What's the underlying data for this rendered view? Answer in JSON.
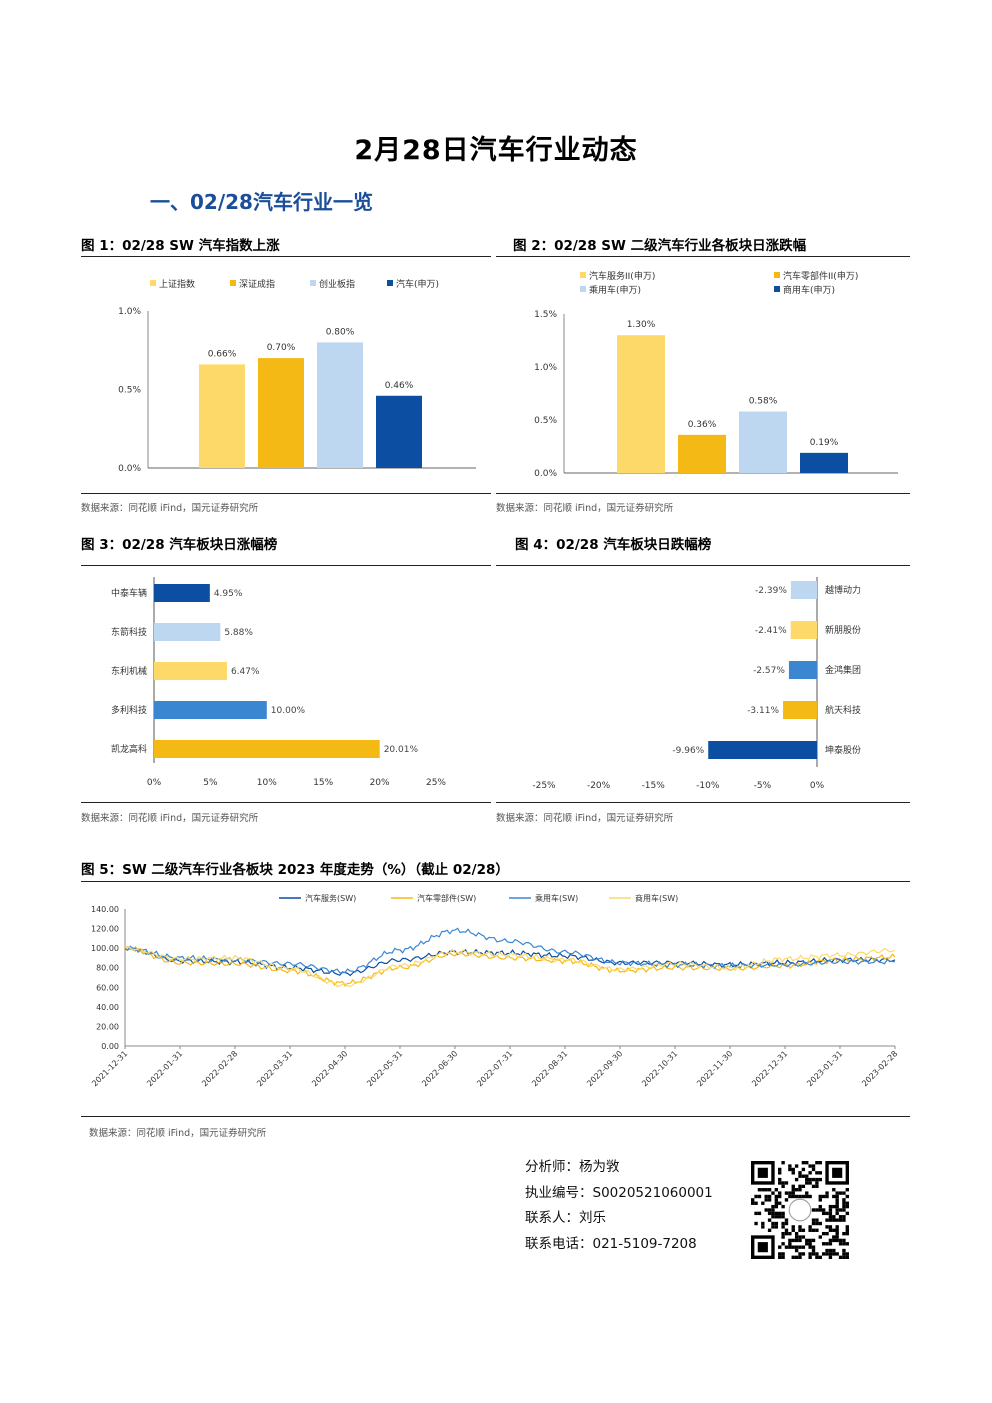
{
  "document": {
    "title": "2月28日汽车行业动态",
    "section": "一、02/28汽车行业一览"
  },
  "figures": {
    "fig1": {
      "title": "图 1：02/28 SW 汽车指数上涨",
      "source": "数据来源：同花顺 iFind，国元证券研究所"
    },
    "fig2": {
      "title": "图 2：02/28 SW 二级汽车行业各板块日涨跌幅",
      "source": "数据来源：同花顺 iFind，国元证券研究所"
    },
    "fig3": {
      "title": "图 3：02/28 汽车板块日涨幅榜",
      "source": "数据来源：同花顺 iFind，国元证券研究所"
    },
    "fig4": {
      "title": "图 4：02/28 汽车板块日跌幅榜",
      "source": "数据来源：同花顺 iFind，国元证券研究所"
    },
    "fig5": {
      "title": "图 5：SW 二级汽车行业各板块 2023 年度走势（%）（截止 02/28）",
      "source": "数据来源：同花顺 iFind，国元证券研究所"
    }
  },
  "colors": {
    "light_yellow": "#fdd96a",
    "gold": "#f5b915",
    "light_blue": "#bcd7ef",
    "mid_blue": "#3b86d0",
    "navy": "#0b4ea2"
  },
  "chart_data": [
    {
      "id": "fig1",
      "type": "bar",
      "categories": [
        "上证指数",
        "深证成指",
        "创业板指",
        "汽车(申万)"
      ],
      "values": [
        0.66,
        0.7,
        0.8,
        0.46
      ],
      "labels": [
        "0.66%",
        "0.70%",
        "0.80%",
        "0.46%"
      ],
      "colors": [
        "#fdd96a",
        "#f5b915",
        "#bcd7ef",
        "#0b4ea2"
      ],
      "ylim": [
        0,
        1.0
      ],
      "yticks": [
        {
          "v": 0,
          "label": "0.0%"
        },
        {
          "v": 0.5,
          "label": "0.5%"
        },
        {
          "v": 1.0,
          "label": "1.0%"
        }
      ],
      "legend": "top"
    },
    {
      "id": "fig2",
      "type": "bar",
      "categories": [
        "汽车服务II(申万)",
        "汽车零部件II(申万)",
        "乘用车(申万)",
        "商用车(申万)"
      ],
      "values": [
        1.3,
        0.36,
        0.58,
        0.19
      ],
      "labels": [
        "1.30%",
        "0.36%",
        "0.58%",
        "0.19%"
      ],
      "colors": [
        "#fdd96a",
        "#f5b915",
        "#bcd7ef",
        "#0b4ea2"
      ],
      "ylim": [
        0,
        1.5
      ],
      "yticks": [
        {
          "v": 0,
          "label": "0.0%"
        },
        {
          "v": 0.5,
          "label": "0.5%"
        },
        {
          "v": 1.0,
          "label": "1.0%"
        },
        {
          "v": 1.5,
          "label": "1.5%"
        }
      ],
      "legend": "top"
    },
    {
      "id": "fig3",
      "type": "bar",
      "orientation": "horizontal",
      "categories": [
        "中泰车辆",
        "东箭科技",
        "东利机械",
        "多利科技",
        "凯龙高科"
      ],
      "values": [
        4.95,
        5.88,
        6.47,
        10.0,
        20.01
      ],
      "labels": [
        "4.95%",
        "5.88%",
        "6.47%",
        "10.00%",
        "20.01%"
      ],
      "colors": [
        "#0b4ea2",
        "#bcd7ef",
        "#fdd96a",
        "#3b86d0",
        "#f5b915"
      ],
      "xlim": [
        0,
        25
      ],
      "xticks": [
        {
          "v": 0,
          "label": "0%"
        },
        {
          "v": 5,
          "label": "5%"
        },
        {
          "v": 10,
          "label": "10%"
        },
        {
          "v": 15,
          "label": "15%"
        },
        {
          "v": 20,
          "label": "20%"
        },
        {
          "v": 25,
          "label": "25%"
        }
      ]
    },
    {
      "id": "fig4",
      "type": "bar",
      "orientation": "horizontal",
      "categories": [
        "越博动力",
        "新朋股份",
        "金鸿集团",
        "航天科技",
        "坤泰股份"
      ],
      "values": [
        -2.39,
        -2.41,
        -2.57,
        -3.11,
        -9.96
      ],
      "labels": [
        "-2.39%",
        "-2.41%",
        "-2.57%",
        "-3.11%",
        "-9.96%"
      ],
      "colors": [
        "#bcd7ef",
        "#fdd96a",
        "#3b86d0",
        "#f5b915",
        "#0b4ea2"
      ],
      "xlim": [
        -25,
        0
      ],
      "xticks": [
        {
          "v": -25,
          "label": "-25%"
        },
        {
          "v": -20,
          "label": "-20%"
        },
        {
          "v": -15,
          "label": "-15%"
        },
        {
          "v": -10,
          "label": "-10%"
        },
        {
          "v": -5,
          "label": "-5%"
        },
        {
          "v": 0,
          "label": "0%"
        }
      ]
    },
    {
      "id": "fig5",
      "type": "line",
      "x": [
        "2021-12-31",
        "2022-01-31",
        "2022-02-28",
        "2022-03-31",
        "2022-04-30",
        "2022-05-31",
        "2022-06-30",
        "2022-07-31",
        "2022-08-31",
        "2022-09-30",
        "2022-10-31",
        "2022-11-30",
        "2022-12-31",
        "2023-01-31",
        "2023-02-28"
      ],
      "series": [
        {
          "name": "汽车服务(SW)",
          "color": "#0b4ea2",
          "values": [
            100,
            87,
            86,
            80,
            74,
            88,
            96,
            95,
            92,
            85,
            85,
            83,
            85,
            88,
            88
          ]
        },
        {
          "name": "汽车零部件(SW)",
          "color": "#f5b915",
          "values": [
            100,
            85,
            84,
            77,
            64,
            80,
            94,
            90,
            87,
            77,
            80,
            79,
            82,
            88,
            91
          ]
        },
        {
          "name": "乘用车(SW)",
          "color": "#3b86d0",
          "values": [
            100,
            90,
            88,
            84,
            76,
            98,
            118,
            107,
            96,
            85,
            83,
            82,
            83,
            86,
            86
          ]
        },
        {
          "name": "商用车(SW)",
          "color": "#fdd96a",
          "values": [
            100,
            89,
            90,
            79,
            62,
            82,
            96,
            93,
            88,
            78,
            84,
            80,
            89,
            93,
            98
          ]
        }
      ],
      "ylim": [
        0,
        140
      ],
      "yticks": [
        {
          "v": 0,
          "label": "0.00"
        },
        {
          "v": 20,
          "label": "20.00"
        },
        {
          "v": 40,
          "label": "40.00"
        },
        {
          "v": 60,
          "label": "60.00"
        },
        {
          "v": 80,
          "label": "80.00"
        },
        {
          "v": 100,
          "label": "100.00"
        },
        {
          "v": 120,
          "label": "120.00"
        },
        {
          "v": 140,
          "label": "140.00"
        }
      ],
      "legend": "top"
    }
  ],
  "analyst": {
    "name_line": "分析师：杨为敩",
    "license_line": "执业编号：S0020521060001",
    "contact_line": "联系人：刘乐",
    "phone_line": "联系电话：021-5109-7208"
  }
}
